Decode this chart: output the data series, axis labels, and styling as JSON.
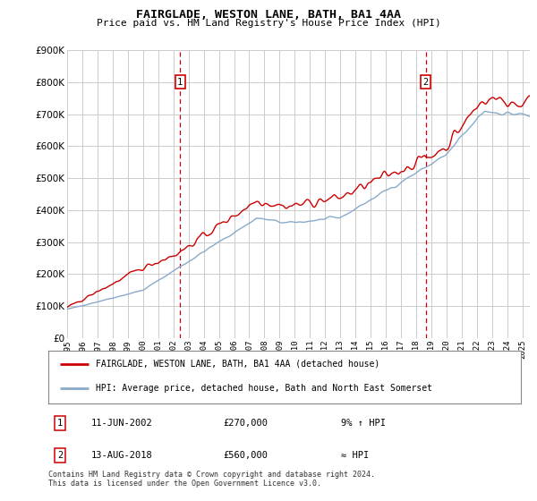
{
  "title": "FAIRGLADE, WESTON LANE, BATH, BA1 4AA",
  "subtitle": "Price paid vs. HM Land Registry's House Price Index (HPI)",
  "bg_color": "#ffffff",
  "grid_color": "#cccccc",
  "line1_color": "#cc0000",
  "line2_color": "#88aacc",
  "ylim": [
    0,
    900000
  ],
  "yticks": [
    0,
    100000,
    200000,
    300000,
    400000,
    500000,
    600000,
    700000,
    800000,
    900000
  ],
  "annotation1": {
    "label": "1",
    "date_str": "11-JUN-2002",
    "price": "£270,000",
    "note": "9% ↑ HPI",
    "year": 2002.45
  },
  "annotation2": {
    "label": "2",
    "date_str": "13-AUG-2018",
    "price": "£560,000",
    "note": "≈ HPI",
    "year": 2018.62
  },
  "legend1": "FAIRGLADE, WESTON LANE, BATH, BA1 4AA (detached house)",
  "legend2": "HPI: Average price, detached house, Bath and North East Somerset",
  "footer1": "Contains HM Land Registry data © Crown copyright and database right 2024.",
  "footer2": "This data is licensed under the Open Government Licence v3.0.",
  "xmin": 1995.0,
  "xmax": 2025.5
}
